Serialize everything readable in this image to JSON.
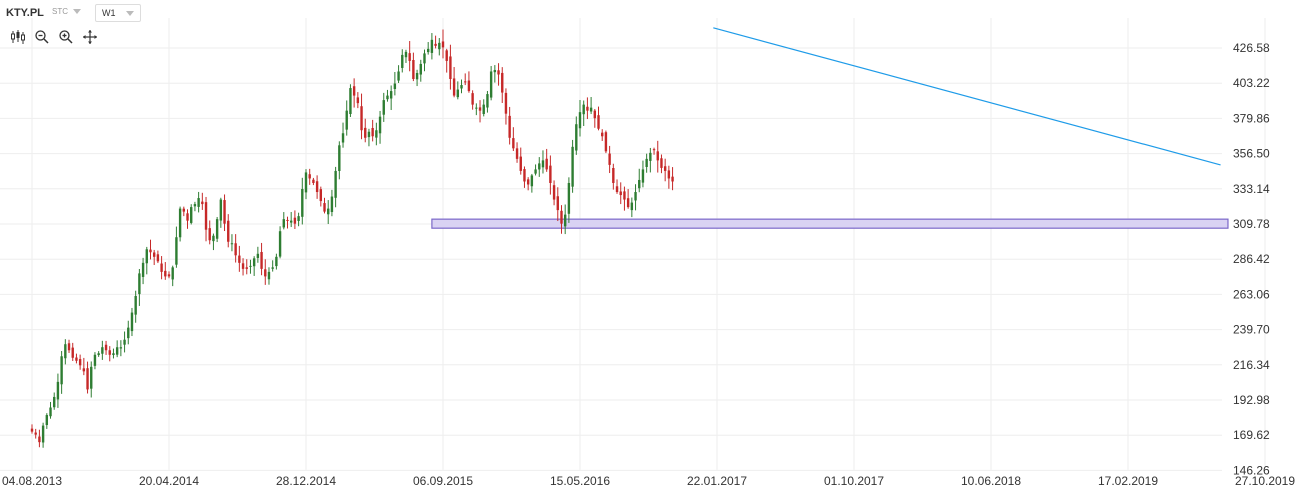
{
  "toolbar": {
    "symbol": "KTY.PL",
    "exchange": "STC",
    "interval": "W1",
    "tools": [
      "candles-icon",
      "zoom-out-icon",
      "zoom-in-icon",
      "crosshair-icon"
    ]
  },
  "colors": {
    "up": "#2e7d32",
    "down": "#c62828",
    "trendline": "#1e9be8",
    "zone_fill": "#d9d2f3",
    "zone_border": "#7b68c9",
    "grid": "#eeeeee"
  },
  "chart_data": {
    "type": "candlestick",
    "y_ticks": [
      "426.58",
      "403.22",
      "379.86",
      "356.50",
      "333.14",
      "309.78",
      "286.42",
      "263.06",
      "239.70",
      "216.34",
      "192.98",
      "169.62",
      "146.26"
    ],
    "x_ticks": [
      "04.08.2013",
      "20.04.2014",
      "28.12.2014",
      "06.09.2015",
      "15.05.2016",
      "22.01.2017",
      "01.10.2017",
      "10.06.2018",
      "17.02.2019",
      "27.10.2019"
    ],
    "ylim": [
      146.26,
      441.5
    ],
    "closes": [
      172,
      170,
      165,
      176,
      183,
      188,
      195,
      205,
      222,
      230,
      226,
      221,
      219,
      216,
      212,
      200,
      215,
      223,
      224,
      228,
      226,
      223,
      224,
      228,
      228,
      233,
      241,
      251,
      262,
      277,
      284,
      293,
      291,
      288,
      285,
      278,
      275,
      275,
      281,
      301,
      320,
      318,
      312,
      321,
      323,
      327,
      323,
      306,
      299,
      302,
      313,
      326,
      310,
      298,
      297,
      289,
      284,
      280,
      280,
      282,
      287,
      290,
      280,
      275,
      278,
      281,
      288,
      305,
      313,
      312,
      312,
      310,
      315,
      333,
      344,
      340,
      337,
      331,
      325,
      318,
      320,
      328,
      345,
      362,
      370,
      385,
      400,
      395,
      390,
      372,
      367,
      371,
      368,
      372,
      381,
      392,
      395,
      398,
      403,
      411,
      422,
      424,
      418,
      406,
      410,
      416,
      423,
      426,
      432,
      428,
      430,
      427,
      418,
      406,
      395,
      399,
      402,
      404,
      398,
      389,
      387,
      385,
      389,
      396,
      411,
      412,
      409,
      397,
      383,
      367,
      360,
      353,
      345,
      338,
      336,
      342,
      346,
      350,
      352,
      346,
      337,
      326,
      319,
      310,
      316,
      337,
      361,
      376,
      384,
      389,
      385,
      387,
      380,
      373,
      368,
      358,
      349,
      337,
      331,
      329,
      326,
      321,
      324,
      331,
      339,
      346,
      353,
      357,
      359,
      352,
      347,
      345,
      340,
      338
    ],
    "volatility": [
      4,
      4,
      5,
      4,
      4,
      5,
      5,
      6,
      7,
      7,
      6,
      6,
      6,
      7,
      8,
      9,
      8,
      7,
      6,
      6,
      6,
      5,
      6,
      6,
      6,
      6,
      7,
      8,
      8,
      9,
      8,
      8,
      8,
      7,
      7,
      7,
      7,
      7,
      8,
      9,
      8,
      7,
      7,
      7,
      7,
      8,
      8,
      9,
      8,
      7,
      8,
      8,
      9,
      8,
      7,
      7,
      7,
      6,
      6,
      6,
      7,
      7,
      8,
      8,
      7,
      7,
      8,
      9,
      9,
      8,
      8,
      8,
      9,
      9,
      9,
      8,
      8,
      8,
      8,
      8,
      8,
      8,
      9,
      9,
      8,
      9,
      9,
      9,
      9,
      10,
      9,
      9,
      9,
      9,
      9,
      9,
      9,
      9,
      9,
      9,
      10,
      10,
      9,
      9,
      9,
      9,
      9,
      9,
      9,
      9,
      9,
      9,
      10,
      10,
      9,
      9,
      9,
      9,
      9,
      9,
      9,
      9,
      9,
      9,
      10,
      9,
      9,
      10,
      10,
      10,
      9,
      9,
      9,
      9,
      9,
      9,
      9,
      9,
      9,
      9,
      9,
      9,
      9,
      9,
      9,
      10,
      10,
      10,
      9,
      9,
      9,
      9,
      9,
      9,
      9,
      9,
      9,
      9,
      9,
      9,
      9,
      9,
      9,
      9,
      9,
      9,
      9,
      9,
      9,
      9,
      9,
      9,
      9,
      8
    ],
    "trendline": {
      "from": {
        "week": 184,
        "price": 440
      },
      "to": {
        "week": 321,
        "price": 349
      }
    },
    "support_zone": {
      "from_week": 108,
      "to_week": 323,
      "top": 313,
      "bottom": 307
    }
  }
}
